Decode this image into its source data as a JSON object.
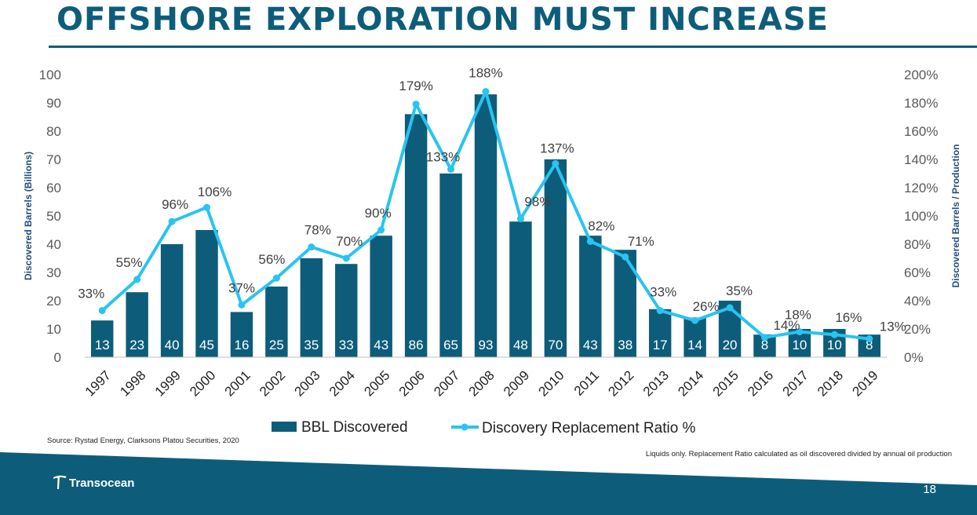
{
  "title": "OFFSHORE EXPLORATION MUST INCREASE",
  "source": "Source: Rystad Energy, Clarksons Platou Securities, 2020",
  "footnote": "Liquids only. Replacement Ratio calculated as oil discovered divided by annual oil production",
  "company": "Transocean",
  "page_number": "18",
  "colors": {
    "bar": "#0d5d7a",
    "line": "#29c4f0",
    "title": "#0d5d7a",
    "band": "#0d5d7a"
  },
  "chart_data": {
    "type": "bar",
    "categories": [
      "1997",
      "1998",
      "1999",
      "2000",
      "2001",
      "2002",
      "2003",
      "2004",
      "2005",
      "2006",
      "2007",
      "2008",
      "2009",
      "2010",
      "2011",
      "2012",
      "2013",
      "2014",
      "2015",
      "2016",
      "2017",
      "2018",
      "2019"
    ],
    "series": [
      {
        "name": "BBL Discovered",
        "type": "bar",
        "axis": "left",
        "values": [
          13,
          23,
          40,
          45,
          16,
          25,
          35,
          33,
          43,
          86,
          65,
          93,
          48,
          70,
          43,
          38,
          17,
          14,
          20,
          8,
          10,
          10,
          8
        ],
        "labels": [
          "13",
          "23",
          "40",
          "45",
          "16",
          "25",
          "35",
          "33",
          "43",
          "86",
          "65",
          "93",
          "48",
          "70",
          "43",
          "38",
          "17",
          "14",
          "20",
          "8",
          "10",
          "10",
          "8"
        ]
      },
      {
        "name": "Discovery Replacement Ratio %",
        "type": "line",
        "axis": "right",
        "values": [
          33,
          55,
          96,
          106,
          37,
          56,
          78,
          70,
          90,
          179,
          133,
          188,
          98,
          137,
          82,
          71,
          33,
          26,
          35,
          14,
          18,
          16,
          13
        ],
        "labels": [
          "33%",
          "55%",
          "96%",
          "106%",
          "37%",
          "56%",
          "78%",
          "70%",
          "90%",
          "179%",
          "133%",
          "188%",
          "98%",
          "137%",
          "82%",
          "71%",
          "33%",
          "26%",
          "35%",
          "14%",
          "18%",
          "16%",
          "13%"
        ]
      }
    ],
    "ylabel": "Discovered Barrels (Billions)",
    "ylabel_right": "Discovered Barrels / Production",
    "ylim": [
      0,
      100
    ],
    "ylim_right": [
      0,
      200
    ],
    "yticks": [
      "0",
      "10",
      "20",
      "30",
      "40",
      "50",
      "60",
      "70",
      "80",
      "90",
      "100"
    ],
    "yticks_right": [
      "0%",
      "20%",
      "40%",
      "60%",
      "80%",
      "100%",
      "120%",
      "140%",
      "160%",
      "180%",
      "200%"
    ],
    "legend_position": "bottom",
    "grid": false
  }
}
